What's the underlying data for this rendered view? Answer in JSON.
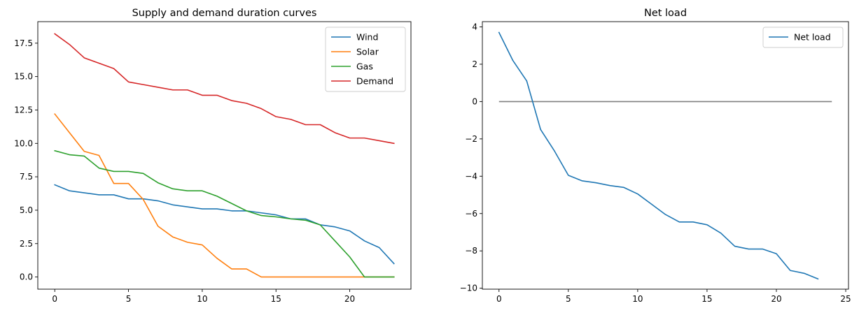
{
  "chart_data": [
    {
      "type": "line",
      "title": "Supply and demand duration curves",
      "xlabel": "",
      "ylabel": "",
      "xlim": [
        -1.15,
        24.15
      ],
      "ylim": [
        -0.91,
        19.11
      ],
      "xticks": [
        0,
        5,
        10,
        15,
        20
      ],
      "yticks": [
        0.0,
        2.5,
        5.0,
        7.5,
        10.0,
        12.5,
        15.0,
        17.5
      ],
      "ytick_labels": [
        "0.0",
        "2.5",
        "5.0",
        "7.5",
        "10.0",
        "12.5",
        "15.0",
        "17.5"
      ],
      "xtick_labels": [
        "0",
        "5",
        "10",
        "15",
        "20"
      ],
      "grid": false,
      "legend": "top-right",
      "x": [
        0,
        1,
        2,
        3,
        4,
        5,
        6,
        7,
        8,
        9,
        10,
        11,
        12,
        13,
        14,
        15,
        16,
        17,
        18,
        19,
        20,
        21,
        22,
        23
      ],
      "series": [
        {
          "name": "Wind",
          "color": "#1f77b4",
          "values": [
            6.9,
            6.45,
            6.3,
            6.15,
            6.15,
            5.85,
            5.85,
            5.7,
            5.4,
            5.25,
            5.1,
            5.1,
            4.95,
            4.95,
            4.8,
            4.65,
            4.35,
            4.35,
            3.9,
            3.75,
            3.45,
            2.7,
            2.2,
            1.0
          ]
        },
        {
          "name": "Solar",
          "color": "#ff7f0e",
          "values": [
            12.2,
            10.8,
            9.4,
            9.1,
            7.0,
            7.0,
            5.8,
            3.8,
            3.0,
            2.6,
            2.4,
            1.4,
            0.6,
            0.6,
            0.0,
            0.0,
            0.0,
            0.0,
            0.0,
            0.0,
            0.0,
            0.0,
            0.0,
            0.0
          ]
        },
        {
          "name": "Gas",
          "color": "#2ca02c",
          "values": [
            9.45,
            9.15,
            9.05,
            8.15,
            7.9,
            7.9,
            7.75,
            7.05,
            6.6,
            6.45,
            6.45,
            6.05,
            5.5,
            4.95,
            4.6,
            4.5,
            4.35,
            4.25,
            3.9,
            2.7,
            1.5,
            0.0,
            0.0,
            0.0
          ]
        },
        {
          "name": "Demand",
          "color": "#d62728",
          "values": [
            18.2,
            17.4,
            16.4,
            16.0,
            15.6,
            14.6,
            14.4,
            14.2,
            14.0,
            14.0,
            13.6,
            13.6,
            13.2,
            13.0,
            12.6,
            12.0,
            11.8,
            11.4,
            11.4,
            10.8,
            10.4,
            10.4,
            10.2,
            10.0
          ]
        }
      ]
    },
    {
      "type": "line",
      "title": "Net load",
      "xlabel": "",
      "ylabel": "",
      "xlim": [
        -1.2,
        25.2
      ],
      "ylim": [
        -10.05,
        4.28
      ],
      "xticks": [
        0,
        5,
        10,
        15,
        20,
        25
      ],
      "yticks": [
        -10,
        -8,
        -6,
        -4,
        -2,
        0,
        2,
        4
      ],
      "xtick_labels": [
        "0",
        "5",
        "10",
        "15",
        "20",
        "25"
      ],
      "ytick_labels": [
        "−10",
        "−8",
        "−6",
        "−4",
        "−2",
        "0",
        "2",
        "4"
      ],
      "grid": false,
      "legend": "top-right",
      "x": [
        0,
        1,
        2,
        3,
        4,
        5,
        6,
        7,
        8,
        9,
        10,
        11,
        12,
        13,
        14,
        15,
        16,
        17,
        18,
        19,
        20,
        21,
        22,
        23
      ],
      "series": [
        {
          "name": "Net load",
          "color": "#1f77b4",
          "values": [
            3.7,
            2.2,
            1.1,
            -1.5,
            -2.65,
            -3.95,
            -4.25,
            -4.35,
            -4.5,
            -4.6,
            -4.95,
            -5.5,
            -6.05,
            -6.45,
            -6.45,
            -6.6,
            -7.05,
            -7.75,
            -7.9,
            -7.9,
            -8.15,
            -9.05,
            -9.2,
            -9.5
          ]
        }
      ],
      "reference_line": {
        "y": 0,
        "x_range": [
          0,
          24
        ],
        "color": "#808080"
      }
    }
  ]
}
